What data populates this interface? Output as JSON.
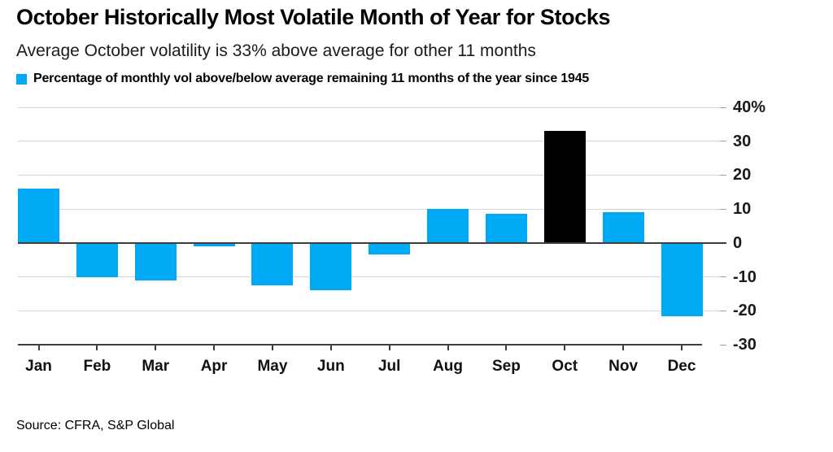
{
  "header": {
    "title": "October Historically Most Volatile Month of Year for Stocks",
    "subtitle": "Average October volatility is 33% above average for other 11 months",
    "legend": {
      "label": "Percentage of monthly vol above/below average remaining 11 months of the year since 1945",
      "swatch_color": "#00a9f4"
    }
  },
  "chart_data": {
    "type": "bar",
    "title": "October Historically Most Volatile Month of Year for Stocks",
    "subtitle": "Average October volatility is 33% above average for other 11 months",
    "series_label": "Percentage of monthly vol above/below average remaining 11 months of the year since 1945",
    "categories": [
      "Jan",
      "Feb",
      "Mar",
      "Apr",
      "May",
      "Jun",
      "Jul",
      "Aug",
      "Sep",
      "Oct",
      "Nov",
      "Dec"
    ],
    "values": [
      16,
      -10,
      -11,
      -1,
      -12.5,
      -14,
      -3.5,
      10,
      8.5,
      33,
      9,
      -21.5
    ],
    "colors": [
      "#00a9f4",
      "#00a9f4",
      "#00a9f4",
      "#00a9f4",
      "#00a9f4",
      "#00a9f4",
      "#00a9f4",
      "#00a9f4",
      "#00a9f4",
      "#000000",
      "#00a9f4",
      "#00a9f4"
    ],
    "highlight_category": "Oct",
    "default_bar_color": "#00a9f4",
    "highlight_bar_color": "#000000",
    "xlabel": "",
    "ylabel": "",
    "ylim": [
      -30,
      40
    ],
    "yticks": [
      40,
      30,
      20,
      10,
      0,
      -10,
      -20,
      -30
    ],
    "ytick_labels": [
      "40%",
      "30",
      "20",
      "10",
      "0",
      "-10",
      "-20",
      "-30"
    ],
    "ytick_side": "right",
    "grid": "horizontal",
    "zero_line": true,
    "legend_position": "top-left"
  },
  "footer": {
    "source": "Source: CFRA, S&P Global"
  }
}
